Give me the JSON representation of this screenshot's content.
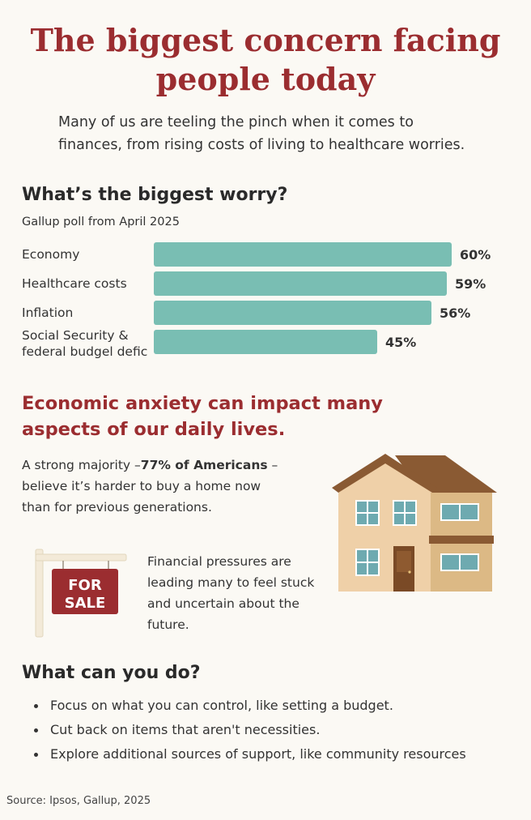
{
  "title": {
    "line1": "The biggest concern facing",
    "line2": "people today"
  },
  "intro": {
    "line1": "Many of us are teeling the pinch when it comes to",
    "line2": "finances, from rising costs of living to healthcare worries."
  },
  "worry_section": {
    "heading": "What’s the biggest worry?",
    "subheading": "Gallup poll from April 2025"
  },
  "chart_data": {
    "type": "bar",
    "orientation": "horizontal",
    "categories": [
      "Economy",
      "Healthcare costs",
      "Inflation",
      "Social Security & federal budgel defic"
    ],
    "category_lines": [
      [
        "Economy"
      ],
      [
        "Healthcare costs"
      ],
      [
        "Inflation"
      ],
      [
        "Social Security &",
        "federal budgel defic"
      ]
    ],
    "values": [
      60,
      59,
      56,
      45
    ],
    "value_labels": [
      "60%",
      "59%",
      "56%",
      "45%"
    ],
    "unit": "%",
    "bar_color": "#79beb3",
    "xlim": [
      0,
      100
    ],
    "grid": false
  },
  "anxiety_section": {
    "heading_line1": "Economic anxiety can impact many",
    "heading_line2": "aspects of our daily lives.",
    "para1": {
      "pre": "A strong majority –",
      "bold": "77% of Americans",
      "post": " –",
      "line2": "believe it’s harder to buy a home now",
      "line3": "than for previous generations."
    },
    "para2": {
      "line1": "Financial pressures are",
      "line2": "leading many to feel stuck",
      "line3": "and uncertain about the",
      "line4": "future."
    },
    "sign": {
      "line1": "FOR",
      "line2": "SALE"
    },
    "icons": [
      "house-illustration",
      "for-sale-sign-illustration"
    ]
  },
  "todo_section": {
    "heading": "What can you do?",
    "items": [
      "Focus on what you can control, like setting a budget.",
      "Cut back on items that aren't necessities.",
      "Explore additional sources of support, like community resources"
    ]
  },
  "source": "Source: Ipsos, Gallup, 2025",
  "colors": {
    "accent_red": "#9b2d30",
    "bar_teal": "#79beb3",
    "background": "#fbf9f4"
  }
}
